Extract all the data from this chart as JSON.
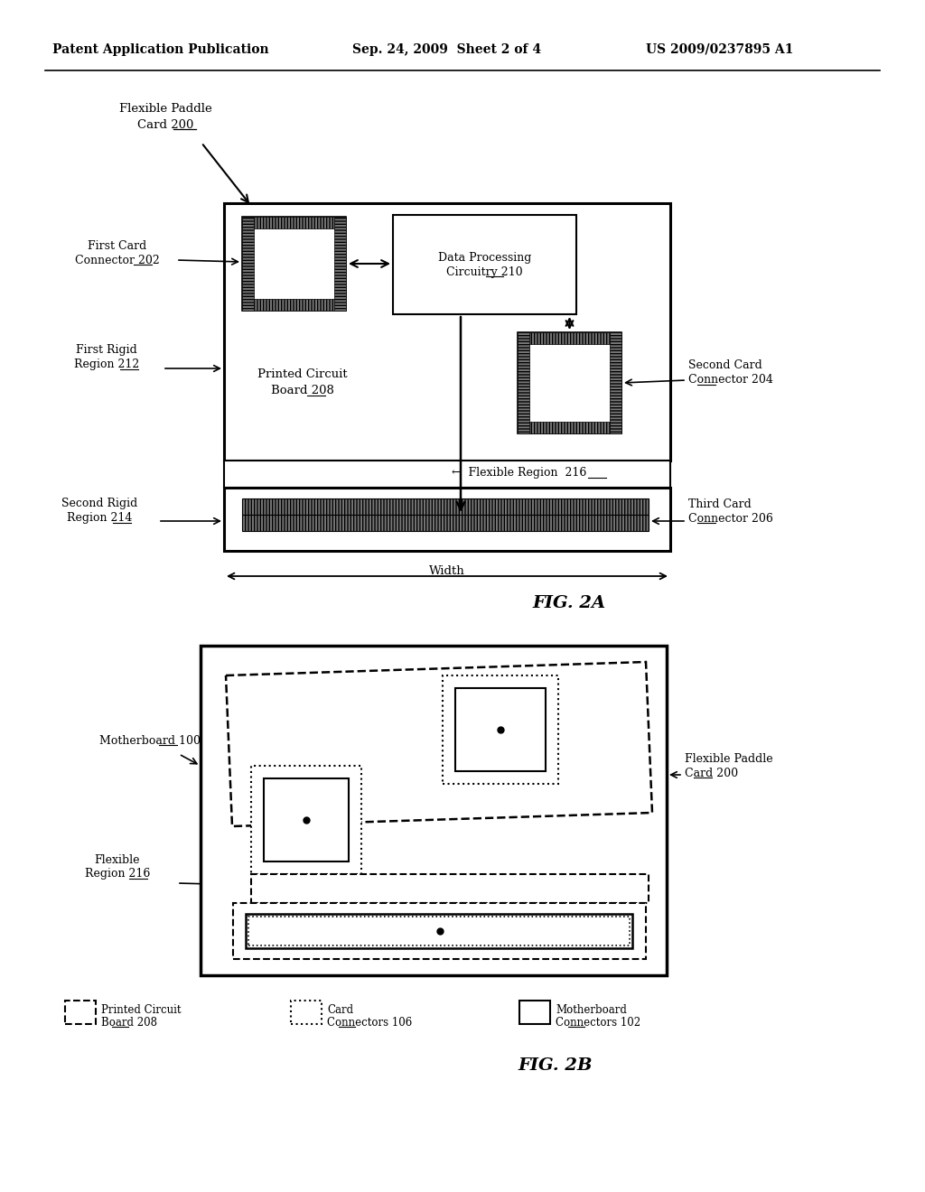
{
  "bg_color": "#ffffff",
  "header_left": "Patent Application Publication",
  "header_mid": "Sep. 24, 2009  Sheet 2 of 4",
  "header_right": "US 2009/0237895 A1",
  "fig2a_label": "FIG. 2A",
  "fig2b_label": "FIG. 2B",
  "fig2a_pcb_line1": "Printed Circuit",
  "fig2a_pcb_line2": "Board",
  "fig2a_pcb_ref": "208",
  "fig2a_dpc_line1": "Data Processing",
  "fig2a_dpc_line2": "Circuitry",
  "fig2a_dpc_ref": "210",
  "fig2a_fcc_line1": "First Card",
  "fig2a_fcc_line2": "Connector",
  "fig2a_fcc_ref": "202",
  "fig2a_scc_line1": "Second Card",
  "fig2a_scc_line2": "Connector",
  "fig2a_scc_ref": "204",
  "fig2a_tcc_line1": "Third Card",
  "fig2a_tcc_line2": "Connector",
  "fig2a_tcc_ref": "206",
  "fig2a_frr_line1": "First Rigid",
  "fig2a_frr_line2": "Region",
  "fig2a_frr_ref": "212",
  "fig2a_srr_line1": "Second Rigid",
  "fig2a_srr_line2": "Region",
  "fig2a_srr_ref": "214",
  "fig2a_fr_text": "←  Flexible Region",
  "fig2a_fr_ref": "216",
  "fig2a_width": "Width",
  "fig2a_fpc_line1": "Flexible Paddle",
  "fig2a_fpc_line2": "Card",
  "fig2a_fpc_ref": "200",
  "fig2b_mb_line1": "Motherboard",
  "fig2b_mb_ref": "100",
  "fig2b_fpc_line1": "Flexible Paddle",
  "fig2b_fpc_line2": "Card",
  "fig2b_fpc_ref": "200",
  "fig2b_fr_line1": "Flexible",
  "fig2b_fr_line2": "Region",
  "fig2b_fr_ref": "216",
  "leg_pcb_line1": "Printed Circuit",
  "leg_pcb_line2": "Board",
  "leg_pcb_ref": "208",
  "leg_cc_line1": "Card",
  "leg_cc_line2": "Connectors",
  "leg_cc_ref": "106",
  "leg_mc_line1": "Motherboard",
  "leg_mc_line2": "Connectors",
  "leg_mc_ref": "102"
}
